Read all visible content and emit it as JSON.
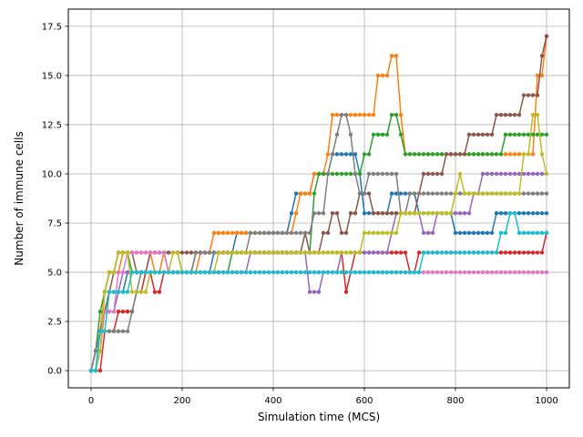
{
  "chart_data": {
    "type": "line",
    "xlabel": "Simulation time (MCS)",
    "ylabel": "Number of immune cells",
    "xlim": [
      -50,
      1050
    ],
    "ylim": [
      -0.875,
      18.375
    ],
    "xticks": [
      0,
      200,
      400,
      600,
      800,
      1000
    ],
    "xtick_labels": [
      "0",
      "200",
      "400",
      "600",
      "800",
      "1000"
    ],
    "yticks": [
      0,
      2.5,
      5,
      7.5,
      10,
      12.5,
      15,
      17.5
    ],
    "ytick_labels": [
      "0.0",
      "2.5",
      "5.0",
      "7.5",
      "10.0",
      "12.5",
      "15.0",
      "17.5"
    ],
    "grid": true,
    "legend": "none",
    "x_step": 10,
    "series": [
      {
        "color": "#1f77b4",
        "values": [
          0,
          1,
          2,
          3,
          4,
          4,
          4,
          4,
          5,
          5,
          5,
          5,
          5,
          5,
          5,
          5,
          5,
          5,
          5,
          5,
          5,
          5,
          5,
          5,
          5,
          5,
          5,
          6,
          6,
          6,
          6,
          6,
          7,
          7,
          7,
          7,
          7,
          7,
          7,
          7,
          7,
          7,
          7,
          7,
          8,
          9,
          9,
          9,
          9,
          10,
          10,
          10,
          10,
          11,
          11,
          11,
          11,
          11,
          11,
          10,
          8,
          8,
          8,
          8,
          8,
          8,
          9,
          9,
          9,
          9,
          9,
          9,
          8,
          8,
          8,
          8,
          8,
          8,
          8,
          8,
          7,
          7,
          7,
          7,
          7,
          7,
          7,
          7,
          7,
          8,
          8,
          8,
          8,
          8,
          8,
          8,
          8,
          8,
          8,
          8,
          8
        ]
      },
      {
        "color": "#ff7f0e",
        "values": [
          0,
          0,
          2,
          4,
          5,
          5,
          5,
          6,
          6,
          6,
          6,
          6,
          6,
          6,
          5,
          5,
          6,
          6,
          6,
          6,
          5,
          5,
          5,
          5,
          6,
          6,
          6,
          7,
          7,
          7,
          7,
          7,
          7,
          7,
          7,
          7,
          7,
          7,
          7,
          7,
          7,
          7,
          7,
          7,
          7,
          8,
          9,
          9,
          9,
          10,
          10,
          10,
          11,
          13,
          13,
          13,
          13,
          13,
          13,
          13,
          13,
          13,
          13,
          15,
          15,
          15,
          16,
          16,
          13,
          11,
          11,
          11,
          11,
          11,
          11,
          11,
          11,
          11,
          11,
          11,
          11,
          11,
          11,
          11,
          11,
          11,
          11,
          11,
          11,
          11,
          11,
          11,
          11,
          11,
          11,
          11,
          11,
          11,
          15,
          15,
          17
        ]
      },
      {
        "color": "#2ca02c",
        "values": [
          0,
          1,
          3,
          4,
          5,
          5,
          6,
          6,
          6,
          5,
          5,
          5,
          5,
          5,
          5,
          5,
          5,
          5,
          5,
          5,
          5,
          5,
          5,
          5,
          5,
          5,
          5,
          5,
          5,
          5,
          5,
          6,
          6,
          6,
          6,
          6,
          6,
          6,
          6,
          6,
          6,
          6,
          6,
          6,
          6,
          6,
          6,
          6,
          6,
          9,
          10,
          10,
          10,
          10,
          10,
          10,
          10,
          10,
          10,
          10,
          11,
          11,
          12,
          12,
          12,
          12,
          13,
          13,
          12,
          11,
          11,
          11,
          11,
          11,
          11,
          11,
          11,
          11,
          11,
          11,
          11,
          11,
          11,
          11,
          11,
          11,
          11,
          11,
          11,
          11,
          11,
          12,
          12,
          12,
          12,
          12,
          12,
          12,
          12,
          12,
          12
        ]
      },
      {
        "color": "#d62728",
        "values": [
          0,
          0,
          0,
          2,
          2,
          2,
          3,
          3,
          3,
          3,
          4,
          4,
          5,
          5,
          4,
          4,
          5,
          5,
          5,
          5,
          5,
          5,
          5,
          6,
          6,
          6,
          6,
          6,
          6,
          6,
          6,
          6,
          6,
          6,
          6,
          6,
          6,
          6,
          6,
          6,
          6,
          6,
          6,
          6,
          6,
          6,
          6,
          6,
          6,
          6,
          6,
          6,
          6,
          6,
          6,
          6,
          4,
          5,
          6,
          6,
          6,
          6,
          6,
          6,
          6,
          6,
          6,
          6,
          6,
          6,
          5,
          5,
          6,
          6,
          6,
          6,
          6,
          6,
          6,
          6,
          6,
          6,
          6,
          6,
          6,
          6,
          6,
          6,
          6,
          6,
          6,
          6,
          6,
          6,
          6,
          6,
          6,
          6,
          6,
          6,
          7
        ]
      },
      {
        "color": "#9467bd",
        "values": [
          0,
          1,
          2,
          3,
          3,
          3,
          4,
          5,
          5,
          5,
          5,
          5,
          5,
          6,
          6,
          6,
          6,
          5,
          5,
          5,
          5,
          5,
          5,
          5,
          5,
          5,
          5,
          5,
          5,
          5,
          5,
          5,
          5,
          5,
          5,
          6,
          6,
          6,
          6,
          6,
          6,
          6,
          6,
          6,
          6,
          6,
          6,
          6,
          4,
          4,
          4,
          5,
          5,
          5,
          5,
          6,
          6,
          6,
          6,
          6,
          6,
          6,
          6,
          6,
          6,
          6,
          7,
          8,
          8,
          8,
          8,
          8,
          8,
          7,
          7,
          7,
          8,
          8,
          8,
          8,
          8,
          8,
          8,
          8,
          9,
          9,
          10,
          10,
          10,
          10,
          10,
          10,
          10,
          10,
          10,
          10,
          10,
          10,
          10,
          10,
          10
        ]
      },
      {
        "color": "#8c564b",
        "values": [
          0,
          0,
          2,
          3,
          4,
          5,
          6,
          6,
          6,
          6,
          5,
          5,
          5,
          6,
          6,
          6,
          6,
          6,
          6,
          6,
          6,
          6,
          6,
          6,
          6,
          6,
          6,
          6,
          6,
          6,
          6,
          6,
          6,
          6,
          6,
          6,
          6,
          6,
          6,
          6,
          6,
          6,
          6,
          6,
          6,
          6,
          6,
          7,
          6,
          6,
          6,
          7,
          7,
          8,
          8,
          7,
          7,
          8,
          8,
          9,
          9,
          9,
          8,
          8,
          8,
          8,
          8,
          8,
          8,
          8,
          8,
          8,
          9,
          10,
          10,
          10,
          10,
          10,
          11,
          11,
          11,
          11,
          11,
          12,
          12,
          12,
          12,
          12,
          12,
          13,
          13,
          13,
          13,
          13,
          13,
          14,
          14,
          14,
          14,
          16,
          17
        ]
      },
      {
        "color": "#e377c2",
        "values": [
          0,
          0,
          1,
          3,
          3,
          3,
          5,
          5,
          6,
          6,
          6,
          6,
          6,
          6,
          6,
          6,
          6,
          5,
          5,
          5,
          5,
          5,
          5,
          5,
          5,
          5,
          5,
          5,
          5,
          5,
          5,
          5,
          5,
          5,
          5,
          5,
          5,
          5,
          5,
          5,
          5,
          5,
          5,
          5,
          5,
          5,
          5,
          5,
          5,
          5,
          5,
          5,
          5,
          5,
          5,
          5,
          5,
          5,
          5,
          5,
          5,
          5,
          5,
          5,
          5,
          5,
          5,
          5,
          5,
          5,
          5,
          5,
          5,
          5,
          5,
          5,
          5,
          5,
          5,
          5,
          5,
          5,
          5,
          5,
          5,
          5,
          5,
          5,
          5,
          5,
          5,
          5,
          5,
          5,
          5,
          5,
          5,
          5,
          5,
          5,
          5
        ]
      },
      {
        "color": "#7f7f7f",
        "values": [
          0,
          1,
          2,
          2,
          2,
          2,
          2,
          2,
          2,
          3,
          4,
          5,
          5,
          5,
          5,
          5,
          5,
          5,
          5,
          5,
          5,
          5,
          5,
          6,
          6,
          6,
          6,
          6,
          6,
          6,
          6,
          6,
          6,
          6,
          6,
          7,
          7,
          7,
          7,
          7,
          7,
          7,
          7,
          7,
          7,
          7,
          7,
          7,
          7,
          8,
          8,
          8,
          10,
          11,
          12,
          13,
          13,
          12,
          10,
          9,
          9,
          10,
          10,
          10,
          10,
          10,
          10,
          10,
          8,
          8,
          9,
          9,
          9,
          9,
          9,
          9,
          9,
          9,
          9,
          9,
          9,
          9,
          9,
          9,
          9,
          9,
          9,
          9,
          9,
          9,
          9,
          9,
          9,
          9,
          9,
          9,
          9,
          9,
          9,
          9,
          9
        ]
      },
      {
        "color": "#bcbd22",
        "values": [
          0,
          0,
          1,
          4,
          5,
          5,
          6,
          6,
          6,
          4,
          4,
          4,
          4,
          5,
          5,
          5,
          5,
          5,
          6,
          6,
          5,
          5,
          5,
          5,
          5,
          5,
          5,
          5,
          6,
          6,
          6,
          6,
          6,
          6,
          6,
          6,
          6,
          6,
          6,
          6,
          6,
          6,
          6,
          6,
          6,
          6,
          6,
          6,
          6,
          6,
          6,
          6,
          6,
          6,
          6,
          6,
          6,
          6,
          6,
          6,
          7,
          7,
          7,
          7,
          7,
          7,
          7,
          7,
          8,
          8,
          8,
          8,
          8,
          8,
          8,
          8,
          8,
          8,
          8,
          8,
          9,
          10,
          9,
          9,
          9,
          9,
          9,
          9,
          9,
          9,
          9,
          9,
          9,
          9,
          9,
          11,
          11,
          13,
          13,
          11,
          10
        ]
      },
      {
        "color": "#17becf",
        "values": [
          0,
          0,
          2,
          2,
          4,
          4,
          4,
          4,
          4,
          5,
          5,
          5,
          5,
          5,
          5,
          5,
          5,
          5,
          5,
          5,
          5,
          5,
          5,
          5,
          5,
          5,
          5,
          5,
          5,
          5,
          5,
          5,
          5,
          5,
          5,
          5,
          5,
          5,
          5,
          5,
          5,
          5,
          5,
          5,
          5,
          5,
          5,
          5,
          5,
          5,
          5,
          5,
          5,
          5,
          5,
          5,
          5,
          5,
          5,
          5,
          5,
          5,
          5,
          5,
          5,
          5,
          5,
          5,
          5,
          5,
          5,
          5,
          5,
          6,
          6,
          6,
          6,
          6,
          6,
          6,
          6,
          6,
          6,
          6,
          6,
          6,
          6,
          6,
          6,
          6,
          7,
          7,
          8,
          8,
          7,
          7,
          7,
          7,
          7,
          7,
          7
        ]
      }
    ]
  }
}
